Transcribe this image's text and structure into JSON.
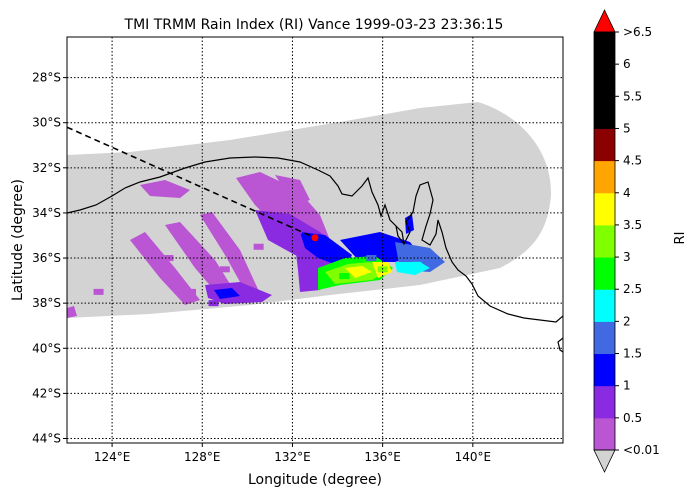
{
  "chart_data": {
    "type": "heatmap",
    "title": "TMI TRMM Rain Index (RI) Vance 1999-03-23 23:36:15",
    "xlabel": "Longitude (degree)",
    "ylabel": "Latitude (degree)",
    "xlim": [
      122,
      144
    ],
    "ylim": [
      -44.2,
      -26.2
    ],
    "x_ticks": [
      124,
      128,
      132,
      136,
      140
    ],
    "x_tick_labels": [
      "124°E",
      "128°E",
      "132°E",
      "136°E",
      "140°E"
    ],
    "y_ticks": [
      -28,
      -30,
      -32,
      -34,
      -36,
      -38,
      -40,
      -42,
      -44
    ],
    "y_tick_labels": [
      "28°S",
      "30°S",
      "32°S",
      "34°S",
      "36°S",
      "38°S",
      "40°S",
      "42°S",
      "44°S"
    ],
    "grid": true,
    "colorbar": {
      "label": "RI",
      "tick_labels": [
        "<0.01",
        "0.5",
        "1",
        "1.5",
        "2",
        "2.5",
        "3",
        "3.5",
        "4",
        "4.5",
        "5",
        "5.5",
        "6",
        ">6.5"
      ],
      "colors": [
        "#ba55d3",
        "#8a2be2",
        "#0000ff",
        "#4169e1",
        "#00ffff",
        "#00ff00",
        "#7fff00",
        "#ffff00",
        "#ffa500",
        "#8b0000",
        "#000000",
        "#000000",
        "#000000"
      ],
      "under_color": "#d3d3d3",
      "over_color": "#ff0000"
    },
    "swath_color": "#d3d3d3",
    "storm_track": {
      "style": "dashed",
      "points": [
        [
          122,
          -30.2
        ],
        [
          133,
          -35.1
        ]
      ]
    },
    "storm_center": {
      "lon": 133,
      "lat": -35.1,
      "color": "#ff0000"
    },
    "rain_cells": [
      {
        "lon": 123.4,
        "lat": -37.5,
        "value": 0.005
      },
      {
        "lon": 126.5,
        "lat": -36.0,
        "value": 0.005
      },
      {
        "lon": 127.5,
        "lat": -37.5,
        "value": 0.005
      },
      {
        "lon": 129.0,
        "lat": -36.5,
        "value": 0.005
      },
      {
        "lon": 130.5,
        "lat": -35.5,
        "value": 0.005
      },
      {
        "lon": 131.0,
        "lat": -33.5,
        "value": 0.005
      },
      {
        "lon": 128.5,
        "lat": -38.0,
        "value": 0.5
      },
      {
        "lon": 130.0,
        "lat": -37.7,
        "value": 0.5
      },
      {
        "lon": 132.2,
        "lat": -34.8,
        "value": 0.5
      },
      {
        "lon": 133.8,
        "lat": -35.6,
        "value": 1
      },
      {
        "lon": 135.5,
        "lat": -36.0,
        "value": 1.5
      },
      {
        "lon": 134.3,
        "lat": -36.8,
        "value": 2.5
      },
      {
        "lon": 136.0,
        "lat": -36.5,
        "value": 3
      },
      {
        "lon": 137.5,
        "lat": -36.3,
        "value": 2
      }
    ]
  }
}
